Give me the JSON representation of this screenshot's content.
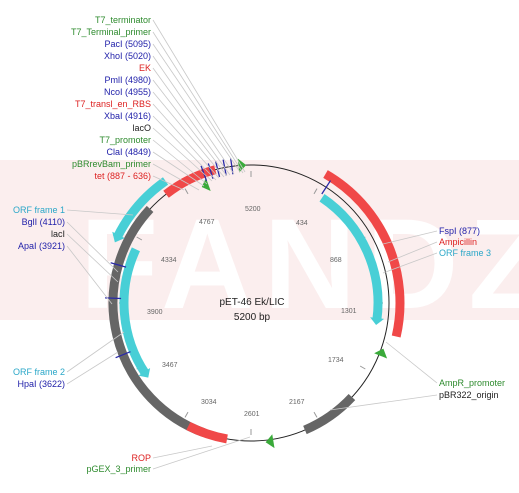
{
  "map": {
    "name": "pET-46 Ek/LIC",
    "size_label": "5200 bp",
    "total_bp": 5200,
    "watermark": "FANDZ"
  },
  "colors": {
    "feature_red": "#f04848",
    "orf_cyan": "#48cfd6",
    "region_gray": "#666666",
    "arrow_green": "#3aaa3a",
    "site_blue": "#2a2aa8",
    "label_green": "#2e8b2e",
    "label_red": "#dd2222",
    "label_blue": "#2222aa",
    "label_cyan": "#2aa7c8",
    "label_dark": "#222222"
  },
  "ticks": [
    "434",
    "868",
    "1301",
    "1734",
    "2167",
    "2601",
    "3034",
    "3467",
    "3900",
    "4334",
    "4767",
    "5200"
  ],
  "labels_top": [
    {
      "text": "T7_terminator",
      "color": "label_green"
    },
    {
      "text": "T7_Terminal_primer",
      "color": "label_green"
    },
    {
      "text": "PacI (5095)",
      "color": "label_blue"
    },
    {
      "text": "XhoI (5020)",
      "color": "label_blue"
    },
    {
      "text": "EK",
      "color": "label_red"
    },
    {
      "text": "PmlI (4980)",
      "color": "label_blue"
    },
    {
      "text": "NcoI (4955)",
      "color": "label_blue"
    },
    {
      "text": "T7_transl_en_RBS",
      "color": "label_red"
    },
    {
      "text": "XbaI (4916)",
      "color": "label_blue"
    },
    {
      "text": "lacO",
      "color": "label_dark"
    },
    {
      "text": "T7_promoter",
      "color": "label_green"
    },
    {
      "text": "ClaI (4849)",
      "color": "label_blue"
    },
    {
      "text": "pBRrevBam_primer",
      "color": "label_green"
    },
    {
      "text": "tet (887 - 636)",
      "color": "label_red"
    }
  ],
  "labels_left": [
    {
      "text": "ORF frame 1",
      "color": "label_cyan"
    },
    {
      "text": "BglI (4110)",
      "color": "label_blue"
    },
    {
      "text": "lacI",
      "color": "label_dark"
    },
    {
      "text": "ApaI (3921)",
      "color": "label_blue"
    },
    {
      "text": "ORF frame 2",
      "color": "label_cyan"
    },
    {
      "text": "HpaI (3622)",
      "color": "label_blue"
    }
  ],
  "labels_right": [
    {
      "text": "FspI (877)",
      "color": "label_blue"
    },
    {
      "text": "Ampicillin",
      "color": "label_red"
    },
    {
      "text": "ORF frame 3",
      "color": "label_cyan"
    },
    {
      "text": "AmpR_promoter",
      "color": "label_green"
    },
    {
      "text": "pBR322_origin",
      "color": "label_dark"
    }
  ],
  "labels_bottom": [
    {
      "text": "ROP",
      "color": "label_red"
    },
    {
      "text": "pGEX_3_primer",
      "color": "label_green"
    }
  ]
}
